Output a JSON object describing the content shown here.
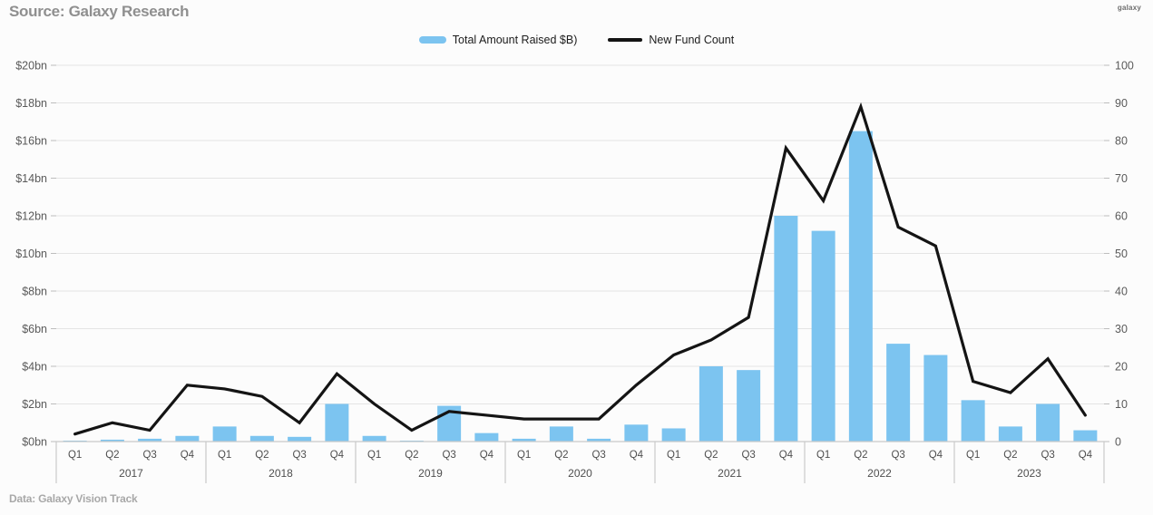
{
  "header": {
    "source_label": "Source: Galaxy Research",
    "logo_text": "galaxy"
  },
  "footer": {
    "data_label": "Data: Galaxy Vision Track"
  },
  "legend": [
    {
      "label": "Total Amount Raised $B)",
      "type": "bar",
      "color": "#7CC4F0"
    },
    {
      "label": "New Fund Count",
      "type": "line",
      "color": "#141414"
    }
  ],
  "colors": {
    "bar": "#7CC4F0",
    "line": "#141414",
    "grid": "#e4e4e4",
    "axis_text": "#5a5a5a",
    "axis_line": "#c9c9c9",
    "background": "#fcfcfc"
  },
  "chart_data": {
    "type": "bar+line",
    "title": "",
    "years": [
      "2017",
      "2018",
      "2019",
      "2020",
      "2021",
      "2022",
      "2023"
    ],
    "quarter_labels": [
      "Q1",
      "Q2",
      "Q3",
      "Q4"
    ],
    "categories": [
      "2017 Q1",
      "2017 Q2",
      "2017 Q3",
      "2017 Q4",
      "2018 Q1",
      "2018 Q2",
      "2018 Q3",
      "2018 Q4",
      "2019 Q1",
      "2019 Q2",
      "2019 Q3",
      "2019 Q4",
      "2020 Q1",
      "2020 Q2",
      "2020 Q3",
      "2020 Q4",
      "2021 Q1",
      "2021 Q2",
      "2021 Q3",
      "2021 Q4",
      "2022 Q1",
      "2022 Q2",
      "2022 Q3",
      "2022 Q4",
      "2023 Q1",
      "2023 Q2",
      "2023 Q3",
      "2023 Q4"
    ],
    "series": [
      {
        "name": "Total Amount Raised $B)",
        "type": "bar",
        "axis": "left",
        "color": "#7CC4F0",
        "values": [
          0.05,
          0.1,
          0.15,
          0.3,
          0.8,
          0.3,
          0.25,
          2.0,
          0.3,
          0.05,
          1.9,
          0.45,
          0.15,
          0.8,
          0.15,
          0.9,
          0.7,
          4.0,
          3.8,
          12.0,
          11.2,
          16.5,
          5.2,
          4.6,
          2.2,
          0.8,
          2.0,
          0.6
        ]
      },
      {
        "name": "New Fund Count",
        "type": "line",
        "axis": "right",
        "color": "#141414",
        "values": [
          2,
          5,
          3,
          15,
          14,
          12,
          5,
          18,
          10,
          3,
          8,
          7,
          6,
          6,
          6,
          15,
          23,
          27,
          33,
          78,
          64,
          89,
          57,
          52,
          16,
          13,
          22,
          7
        ]
      }
    ],
    "left_axis": {
      "tick_labels": [
        "$20bn",
        "$18bn",
        "$16bn",
        "$14bn",
        "$12bn",
        "$10bn",
        "$8bn",
        "$6bn",
        "$4bn",
        "$2bn",
        "$0bn"
      ],
      "min": 0,
      "max": 20
    },
    "right_axis": {
      "tick_labels": [
        "100",
        "90",
        "80",
        "70",
        "60",
        "50",
        "40",
        "30",
        "20",
        "10",
        "0"
      ],
      "min": 0,
      "max": 100
    },
    "grid": true,
    "legend_position": "top"
  }
}
